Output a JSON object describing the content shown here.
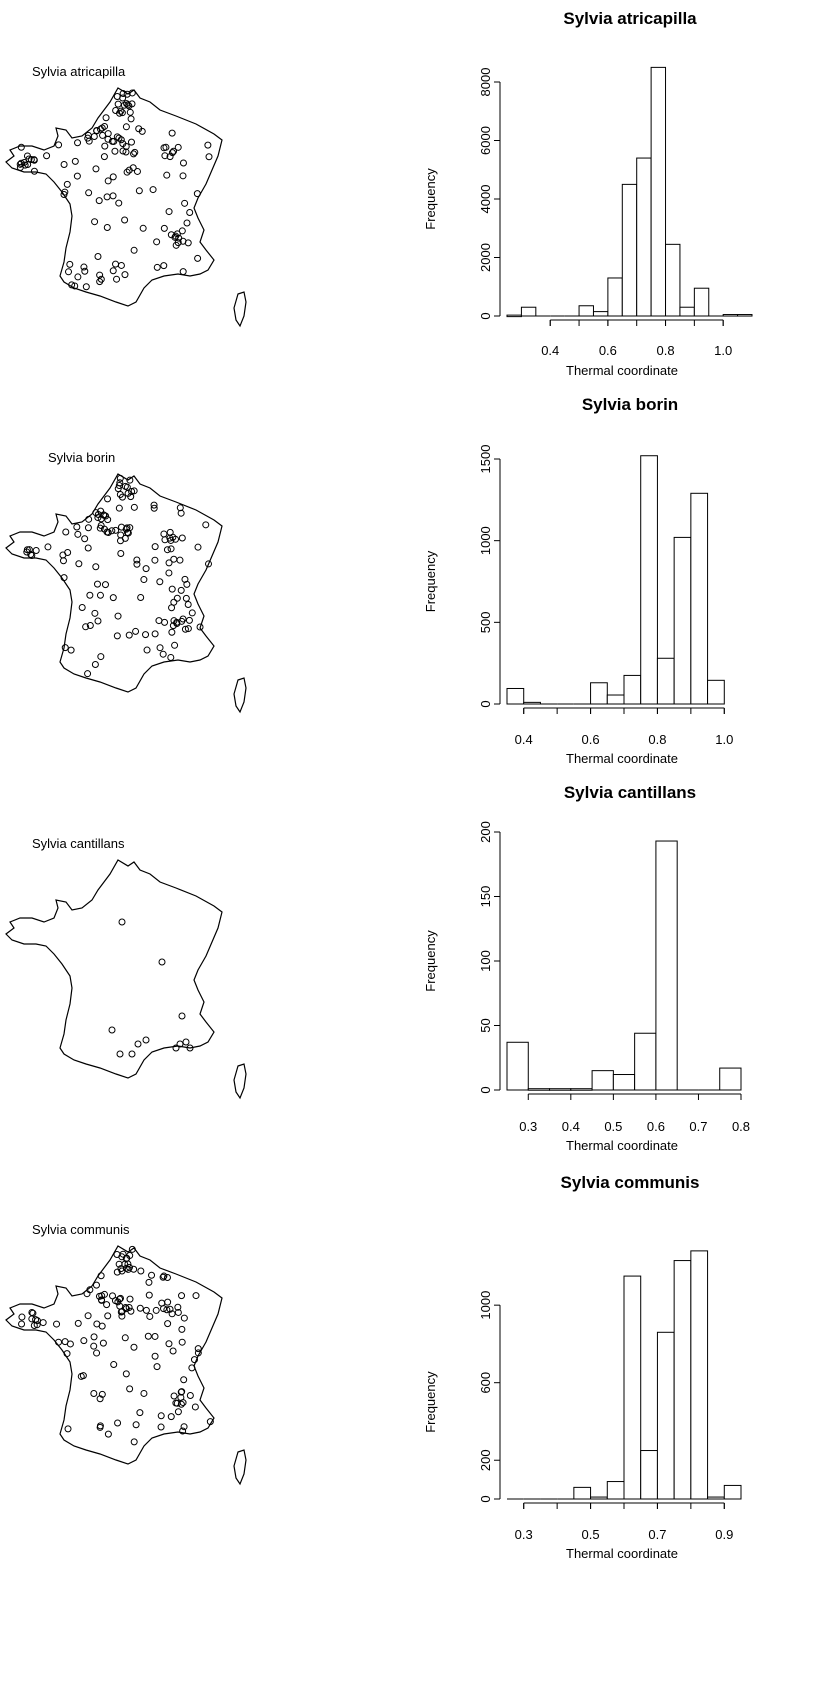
{
  "panels": [
    {
      "map_label": "Sylvia atricapilla",
      "map_points_count_hint": "many"
    },
    {
      "map_label": "Sylvia borin"
    },
    {
      "map_label": "Sylvia cantillans"
    },
    {
      "map_label": "Sylvia communis"
    }
  ],
  "chart_data": [
    {
      "type": "bar",
      "title": "Sylvia atricapilla",
      "xlabel": "Thermal coordinate",
      "ylabel": "Frequency",
      "xlim": [
        0.25,
        1.1
      ],
      "ylim": [
        0,
        8500
      ],
      "xticks": [
        "0.4",
        "0.6",
        "0.8",
        "1.0"
      ],
      "yticks": [
        "0",
        "2000",
        "4000",
        "6000",
        "8000"
      ],
      "bin_width": 0.05,
      "bins": [
        [
          0.25,
          0.3,
          30
        ],
        [
          0.3,
          0.35,
          300
        ],
        [
          0.35,
          0.4,
          0
        ],
        [
          0.4,
          0.45,
          0
        ],
        [
          0.45,
          0.5,
          0
        ],
        [
          0.5,
          0.55,
          350
        ],
        [
          0.55,
          0.6,
          150
        ],
        [
          0.6,
          0.65,
          1300
        ],
        [
          0.65,
          0.7,
          4500
        ],
        [
          0.7,
          0.75,
          5400
        ],
        [
          0.75,
          0.8,
          8500
        ],
        [
          0.8,
          0.85,
          2450
        ],
        [
          0.85,
          0.9,
          300
        ],
        [
          0.9,
          0.95,
          950
        ],
        [
          0.95,
          1.0,
          0
        ],
        [
          1.0,
          1.05,
          50
        ],
        [
          1.05,
          1.1,
          50
        ]
      ]
    },
    {
      "type": "bar",
      "title": "Sylvia borin",
      "xlabel": "Thermal coordinate",
      "ylabel": "Frequency",
      "xlim": [
        0.35,
        1.05
      ],
      "ylim": [
        0,
        1520
      ],
      "xticks": [
        "0.4",
        "0.6",
        "0.8",
        "1.0"
      ],
      "yticks": [
        "0",
        "500",
        "1000",
        "1500"
      ],
      "bin_width": 0.05,
      "bins": [
        [
          0.35,
          0.4,
          95
        ],
        [
          0.4,
          0.45,
          10
        ],
        [
          0.45,
          0.5,
          0
        ],
        [
          0.5,
          0.55,
          0
        ],
        [
          0.55,
          0.6,
          0
        ],
        [
          0.6,
          0.65,
          130
        ],
        [
          0.65,
          0.7,
          55
        ],
        [
          0.7,
          0.75,
          175
        ],
        [
          0.75,
          0.8,
          1520
        ],
        [
          0.8,
          0.85,
          280
        ],
        [
          0.85,
          0.9,
          1020
        ],
        [
          0.9,
          0.95,
          1290
        ],
        [
          0.95,
          1.0,
          145
        ]
      ]
    },
    {
      "type": "bar",
      "title": "Sylvia cantillans",
      "xlabel": "Thermal coordinate",
      "ylabel": "Frequency",
      "xlim": [
        0.25,
        0.8
      ],
      "ylim": [
        0,
        200
      ],
      "xticks": [
        "0.3",
        "0.4",
        "0.5",
        "0.6",
        "0.7",
        "0.8"
      ],
      "yticks": [
        "0",
        "50",
        "100",
        "150",
        "200"
      ],
      "bin_width": 0.05,
      "bins": [
        [
          0.25,
          0.3,
          37
        ],
        [
          0.3,
          0.35,
          1
        ],
        [
          0.35,
          0.4,
          1
        ],
        [
          0.4,
          0.45,
          1
        ],
        [
          0.45,
          0.5,
          15
        ],
        [
          0.5,
          0.55,
          12
        ],
        [
          0.55,
          0.6,
          44
        ],
        [
          0.6,
          0.65,
          193
        ],
        [
          0.65,
          0.7,
          0
        ],
        [
          0.7,
          0.75,
          0
        ],
        [
          0.75,
          0.8,
          17
        ]
      ]
    },
    {
      "type": "bar",
      "title": "Sylvia communis",
      "xlabel": "Thermal coordinate",
      "ylabel": "Frequency",
      "xlim": [
        0.25,
        0.95
      ],
      "ylim": [
        0,
        1300
      ],
      "xticks": [
        "0.3",
        "0.5",
        "0.7",
        "0.9"
      ],
      "yticks": [
        "0",
        "200",
        "600",
        "1000"
      ],
      "bin_width": 0.05,
      "bins": [
        [
          0.25,
          0.3,
          0
        ],
        [
          0.3,
          0.35,
          0
        ],
        [
          0.35,
          0.4,
          0
        ],
        [
          0.4,
          0.45,
          0
        ],
        [
          0.45,
          0.5,
          60
        ],
        [
          0.5,
          0.55,
          10
        ],
        [
          0.55,
          0.6,
          90
        ],
        [
          0.6,
          0.65,
          1150
        ],
        [
          0.65,
          0.7,
          250
        ],
        [
          0.7,
          0.75,
          860
        ],
        [
          0.75,
          0.8,
          1230
        ],
        [
          0.8,
          0.85,
          1280
        ],
        [
          0.85,
          0.9,
          10
        ],
        [
          0.9,
          0.95,
          70
        ]
      ]
    }
  ]
}
